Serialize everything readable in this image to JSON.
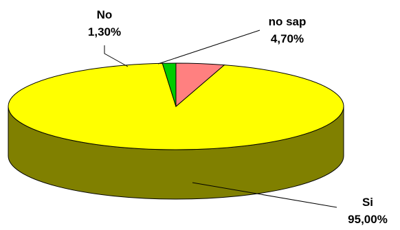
{
  "chart_data": {
    "type": "pie",
    "style": "3d",
    "slices": [
      {
        "label": "Si",
        "value": 95.0,
        "display": "95,00%",
        "color": "#ffff00",
        "side_color": "#808000"
      },
      {
        "label": "No",
        "value": 1.3,
        "display": "1,30%",
        "color": "#00cc00",
        "side_color": "#006600"
      },
      {
        "label": "no sap",
        "value": 4.7,
        "display": "4,70%",
        "color": "#ff8080",
        "side_color": "#804040"
      }
    ],
    "legend": "none"
  }
}
